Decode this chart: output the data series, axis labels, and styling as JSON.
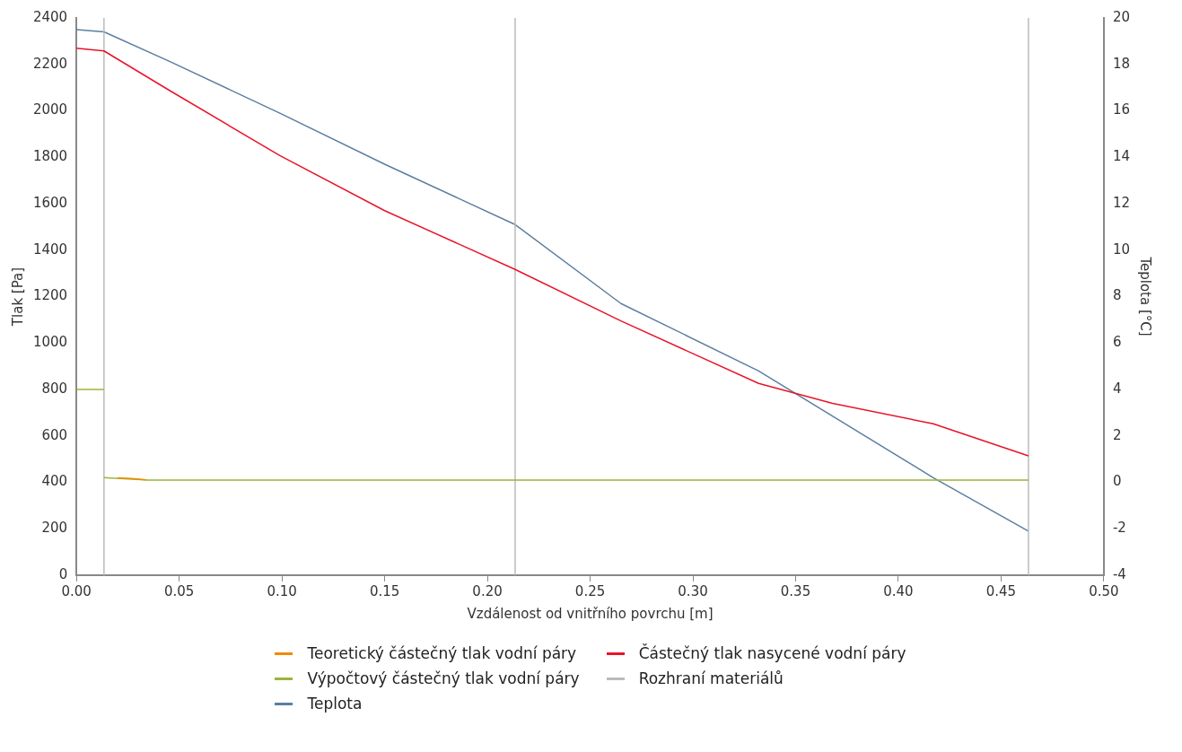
{
  "chart_data": {
    "type": "line",
    "xlabel": "Vzdálenost od vnitřního povrchu [m]",
    "ylabel": "Tlak [Pa]",
    "y2label": "Teplota [°C]",
    "xlim": [
      0,
      0.5
    ],
    "xticks": [
      {
        "value": 0,
        "label": "0.00"
      },
      {
        "value": 0.05,
        "label": "0.05"
      },
      {
        "value": 0.1,
        "label": "0.10"
      },
      {
        "value": 0.15,
        "label": "0.15"
      },
      {
        "value": 0.2,
        "label": "0.20"
      },
      {
        "value": 0.25,
        "label": "0.25"
      },
      {
        "value": 0.3,
        "label": "0.30"
      },
      {
        "value": 0.35,
        "label": "0.35"
      },
      {
        "value": 0.4,
        "label": "0.40"
      },
      {
        "value": 0.45,
        "label": "0.45"
      },
      {
        "value": 0.5,
        "label": "0.50"
      }
    ],
    "ylim": [
      0,
      2400
    ],
    "yticks": [
      0,
      200,
      400,
      600,
      800,
      1000,
      1200,
      1400,
      1600,
      1800,
      2000,
      2200,
      2400
    ],
    "y2lim": [
      -4,
      20
    ],
    "y2ticks": [
      -4,
      -2,
      0,
      2,
      4,
      6,
      8,
      10,
      12,
      14,
      16,
      18,
      20
    ],
    "grid": false,
    "legend": "bottom",
    "series": [
      {
        "name": "Teoretický částečný tlak vodní páry",
        "color": "#f08a00",
        "x": [
          0.02,
          0.027,
          0.034
        ],
        "values": [
          419,
          416,
          411
        ]
      },
      {
        "name": "Částečný tlak nasycené vodní páry",
        "color": "#e8142a",
        "x": [
          0,
          0.0134,
          0.046,
          0.099,
          0.15,
          0.2135,
          0.265,
          0.332,
          0.368,
          0.417,
          0.4633
        ],
        "values": [
          2270,
          2258,
          2084,
          1807,
          1570,
          1317,
          1095,
          826,
          740,
          652,
          514
        ]
      },
      {
        "name": "Výpočtový částečný tlak vodní páry",
        "color": "#9bb53a",
        "x": [
          0,
          0.0134,
          null,
          0.0134,
          0.035,
          0.4633
        ],
        "values": [
          800,
          800,
          null,
          420,
          410,
          410
        ]
      },
      {
        "name": "Rozhraní materiálů",
        "color": "#bbbbbb",
        "x": [
          0.0134,
          0.0134,
          null,
          0.2135,
          0.2135,
          null,
          0.4633,
          0.4633
        ],
        "values": [
          0,
          2400,
          null,
          0,
          2400,
          null,
          0,
          2400
        ]
      },
      {
        "name": "Teplota",
        "color": "#5b7fa0",
        "axis": "y2",
        "x": [
          0,
          0.0134,
          0.046,
          0.099,
          0.15,
          0.2135,
          0.265,
          0.332,
          0.417,
          0.4633
        ],
        "values": [
          19.5,
          19.4,
          18.1,
          15.9,
          13.7,
          11.1,
          7.7,
          4.8,
          0.2,
          -2.1
        ]
      }
    ]
  }
}
